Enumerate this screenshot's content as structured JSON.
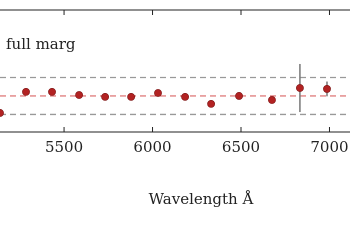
{
  "chart_data": {
    "type": "scatter",
    "legend_text": "full marg",
    "xlabel": "Wavelength Å",
    "xlim": [
      5138,
      7116
    ],
    "xticks": [
      5500,
      6000,
      6500,
      7000
    ],
    "ylim": [
      -1.95,
      4.65
    ],
    "hlines": [
      {
        "value": 1,
        "color": "#999999"
      },
      {
        "value": 0,
        "color": "#e08080"
      },
      {
        "value": -1,
        "color": "#999999"
      }
    ],
    "series": [
      {
        "color": "#b22222",
        "x": [
          5138,
          5285,
          5432,
          5585,
          5732,
          5879,
          6031,
          6184,
          6331,
          6489,
          6675,
          6833,
          6986
        ],
        "values": [
          -0.92,
          0.22,
          0.22,
          0.05,
          -0.05,
          -0.05,
          0.16,
          -0.05,
          -0.43,
          0,
          -0.22,
          0.43,
          0.38
        ],
        "errors": [
          null,
          null,
          null,
          null,
          null,
          null,
          null,
          null,
          null,
          null,
          null,
          1.3,
          0.4
        ]
      }
    ]
  }
}
